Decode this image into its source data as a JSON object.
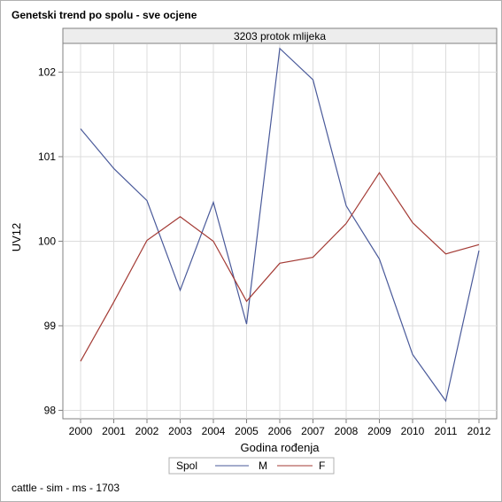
{
  "title": "Genetski trend po spolu - sve ocjene",
  "footnote": "cattle - sim - ms - 1703",
  "colors": {
    "M": "#4a5a9a",
    "F": "#a33a34",
    "axis": "#808080",
    "grid": "#dcdcdc",
    "panel": "#ededed"
  },
  "chart_data": {
    "type": "line",
    "panel_label": "3203 protok mlijeka",
    "xlabel": "Godina rođenja",
    "ylabel": "UV12",
    "legend_title": "Spol",
    "legend_position": "bottom",
    "grid": true,
    "x": [
      "2000",
      "2001",
      "2002",
      "2003",
      "2004",
      "2005",
      "2006",
      "2007",
      "2008",
      "2009",
      "2010",
      "2011",
      "2012"
    ],
    "yticks": [
      98,
      99,
      100,
      101,
      102
    ],
    "ylim": [
      97.9,
      102.34
    ],
    "series": [
      {
        "name": "M",
        "values": [
          101.33,
          100.86,
          100.48,
          99.42,
          100.46,
          99.02,
          102.28,
          101.91,
          100.42,
          99.79,
          98.66,
          98.11,
          99.89
        ]
      },
      {
        "name": "F",
        "values": [
          98.58,
          99.28,
          100.01,
          100.29,
          100.0,
          99.29,
          99.74,
          99.81,
          100.21,
          100.81,
          100.22,
          99.85,
          99.96
        ]
      }
    ]
  }
}
